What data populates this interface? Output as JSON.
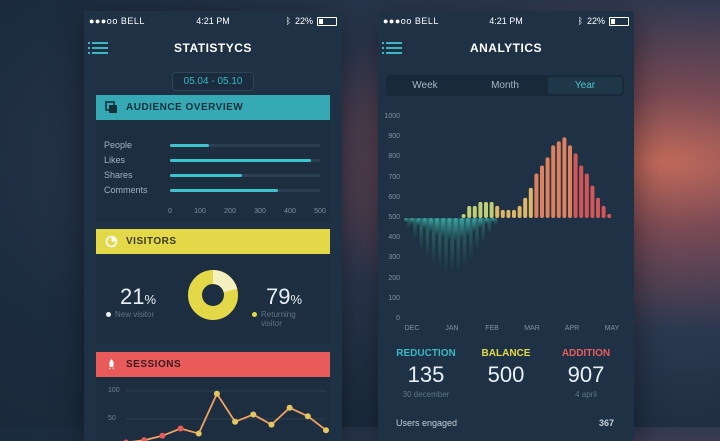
{
  "colors": {
    "background": "#1a2a3b",
    "phone_bg": "#1f3245",
    "teal": "#35aab5",
    "yellow": "#e3d948",
    "red": "#e85b5a",
    "orange": "#f0a060"
  },
  "status_bar": {
    "carrier": "●●●oo BELL",
    "time": "4:21 PM",
    "battery": "22%"
  },
  "statistics_screen": {
    "title": "STATISTYCS",
    "date_range": "05.04 - 05.10",
    "audience": {
      "title": "AUDIENCE OVERVIEW",
      "icon": "copy-icon",
      "rows": [
        {
          "label": "People",
          "value": 130
        },
        {
          "label": "Likes",
          "value": 470
        },
        {
          "label": "Shares",
          "value": 240
        },
        {
          "label": "Comments",
          "value": 360
        }
      ],
      "axis_ticks": [
        "0",
        "100",
        "200",
        "300",
        "400",
        "500"
      ],
      "axis_max": 500
    },
    "visitors": {
      "title": "VISITORS",
      "icon": "clock-icon",
      "new_value": "21",
      "new_unit": "%",
      "new_label": "New visitor",
      "returning_value": "79",
      "returning_unit": "%",
      "returning_label": "Returning visitor",
      "new_fraction": 0.21
    },
    "sessions": {
      "title": "SESSIONS",
      "icon": "rocket-icon",
      "y_ticks": [
        "100",
        "50"
      ],
      "points": [
        8,
        12,
        20,
        33,
        24,
        95,
        45,
        58,
        40,
        70,
        55,
        30
      ]
    }
  },
  "analytics_screen": {
    "title": "ANALYTICS",
    "tabs": [
      "Week",
      "Month",
      "Year"
    ],
    "active_tab": "Year",
    "y_ticks": [
      "1000",
      "900",
      "800",
      "700",
      "600",
      "500",
      "400",
      "300",
      "200",
      "100",
      "0"
    ],
    "x_ticks": [
      "DEC",
      "JAN",
      "FEB",
      "MAR",
      "APR",
      "MAY"
    ],
    "chart_data": {
      "type": "bar",
      "ylim": [
        0,
        1000
      ],
      "baseline": 500,
      "series": [
        {
          "values": [
            480,
            470,
            460,
            445,
            430,
            410,
            400,
            390,
            385,
            395,
            410,
            430,
            450,
            470,
            480
          ]
        },
        {
          "values": [
            450,
            400,
            340,
            300,
            270,
            250,
            235,
            230,
            240,
            260,
            300,
            340,
            380,
            420,
            460
          ]
        },
        {
          "values": [
            500,
            520,
            560,
            560,
            580,
            580,
            580,
            560,
            540,
            540,
            540,
            560,
            600,
            650,
            720,
            760,
            800,
            860,
            880,
            900,
            860,
            820,
            760,
            720,
            660,
            600,
            560,
            520
          ]
        }
      ]
    },
    "stats": [
      {
        "label": "REDUCTION",
        "value": "135",
        "sub": "30 december",
        "color": "#39b7c4"
      },
      {
        "label": "BALANCE",
        "value": "500",
        "sub": "",
        "color": "#e3d948"
      },
      {
        "label": "ADDITION",
        "value": "907",
        "sub": "4 april",
        "color": "#e85b5a"
      }
    ],
    "users_engaged": {
      "label": "Users engaged",
      "value": "367"
    }
  }
}
